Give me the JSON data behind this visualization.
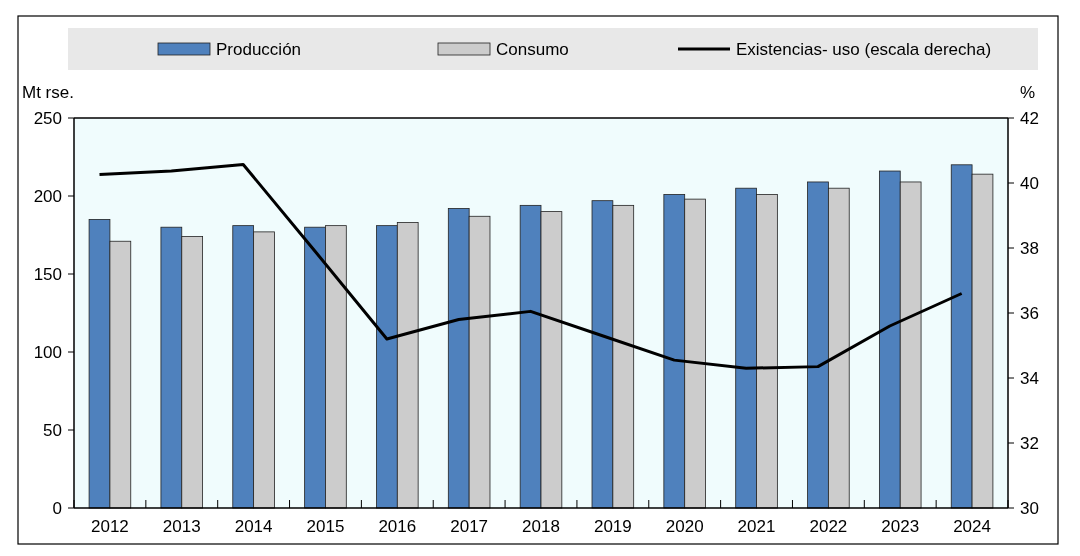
{
  "chart_data": {
    "type": "bar",
    "ylabel": "Mt rse.",
    "y2label": "%",
    "categories": [
      "2012",
      "2013",
      "2014",
      "2015",
      "2016",
      "2017",
      "2018",
      "2019",
      "2020",
      "2021",
      "2022",
      "2023",
      "2024"
    ],
    "series": [
      {
        "name": "Producción",
        "color": "#4f81bd",
        "values": [
          185,
          180,
          181,
          180,
          181,
          192,
          194,
          197,
          201,
          205,
          209,
          216,
          220
        ]
      },
      {
        "name": "Consumo",
        "color": "#cccccc",
        "values": [
          171,
          174,
          177,
          181,
          183,
          187,
          190,
          194,
          198,
          201,
          205,
          209,
          214
        ]
      },
      {
        "name": "Existencias- uso (escala derecha)",
        "type": "line",
        "axis": "y2",
        "color": "#000000",
        "values": [
          40.26,
          40.37,
          40.57,
          37.9,
          35.2,
          35.8,
          36.05,
          35.3,
          34.55,
          34.3,
          34.35,
          35.6,
          36.6
        ]
      }
    ],
    "ylim": [
      0,
      250
    ],
    "yticks": [
      0,
      50,
      100,
      150,
      200,
      250
    ],
    "y2lim": [
      30,
      42
    ],
    "y2ticks": [
      30,
      32,
      34,
      36,
      38,
      40,
      42
    ],
    "legend": "top",
    "line_style": "solid",
    "marker": "none"
  }
}
